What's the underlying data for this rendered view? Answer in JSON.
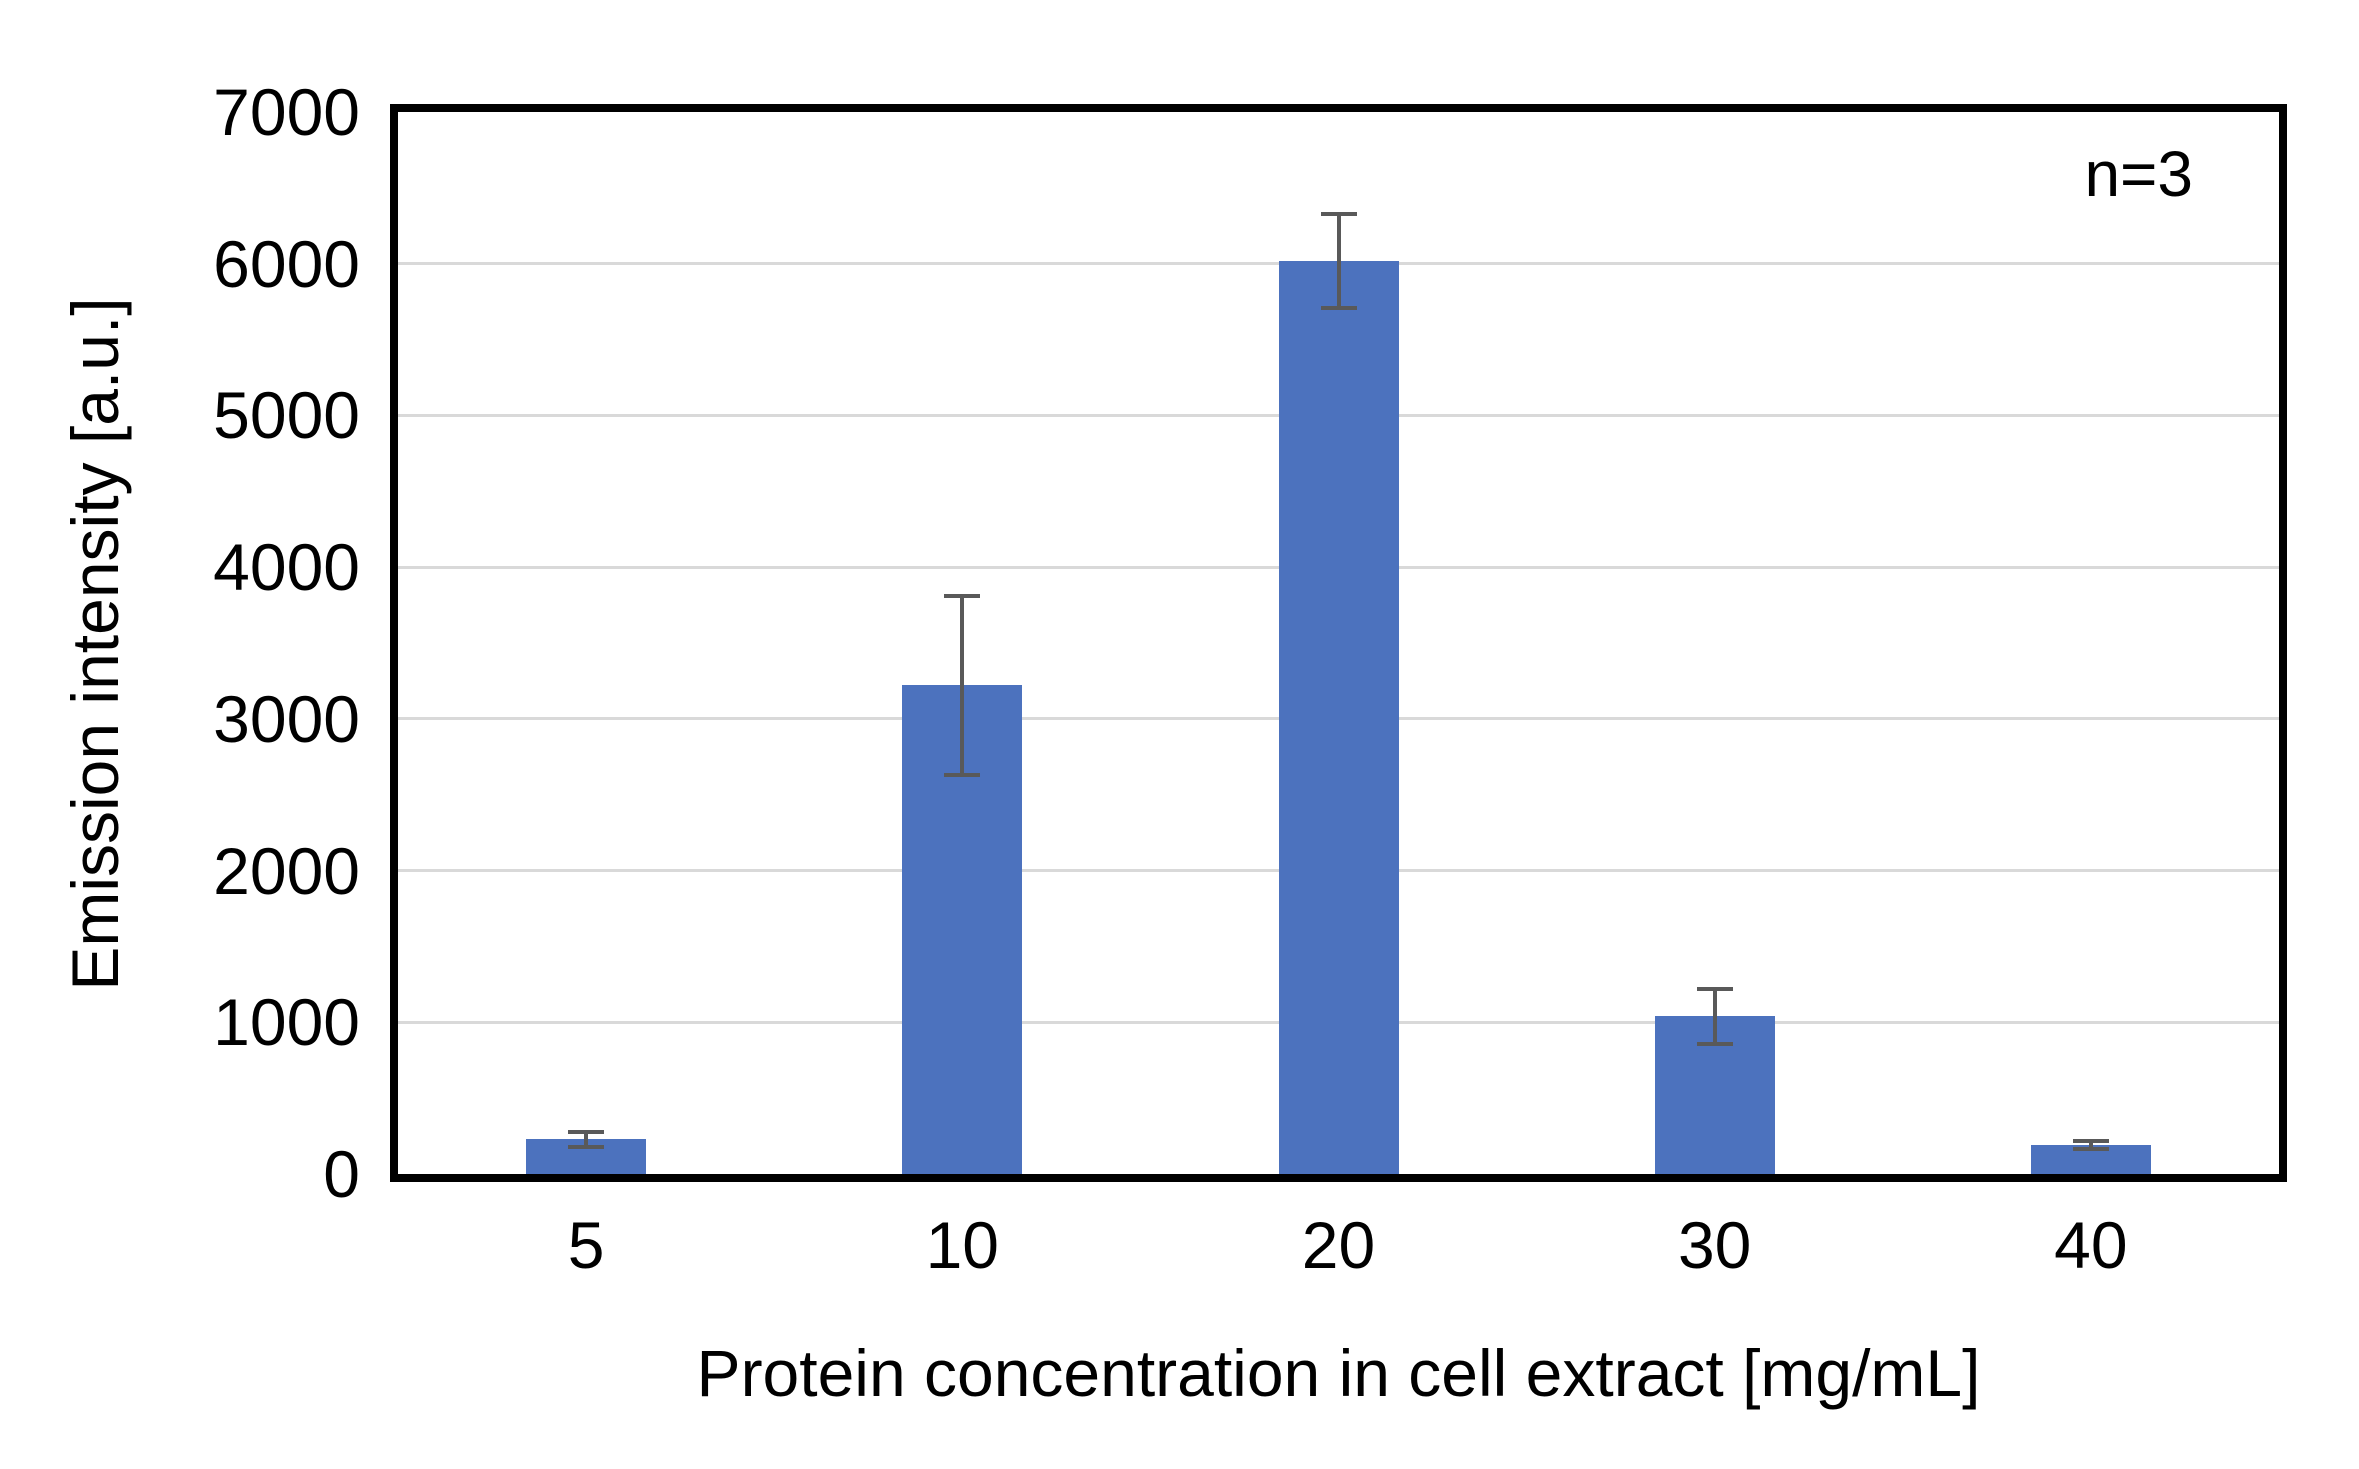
{
  "chart_data": {
    "type": "bar",
    "annotation": "n=3",
    "categories": [
      "5",
      "10",
      "20",
      "30",
      "40"
    ],
    "values": [
      230,
      3220,
      6020,
      1040,
      190
    ],
    "errors": [
      50,
      590,
      310,
      180,
      25
    ],
    "xlabel": "Protein concentration in cell extract [mg/mL]",
    "ylabel": "Emission intensity [a.u.]",
    "ylim": [
      0,
      7000
    ],
    "yticks": [
      0,
      1000,
      2000,
      3000,
      4000,
      5000,
      6000,
      7000
    ],
    "grid": "horizontal-major",
    "legend_position": "none",
    "colors": {
      "bar": "#4C72BE",
      "error_bar": "#595959",
      "gridline": "#D9D9D9",
      "axis_border": "#000000",
      "text": "#000000",
      "background": "#FFFFFF"
    }
  }
}
